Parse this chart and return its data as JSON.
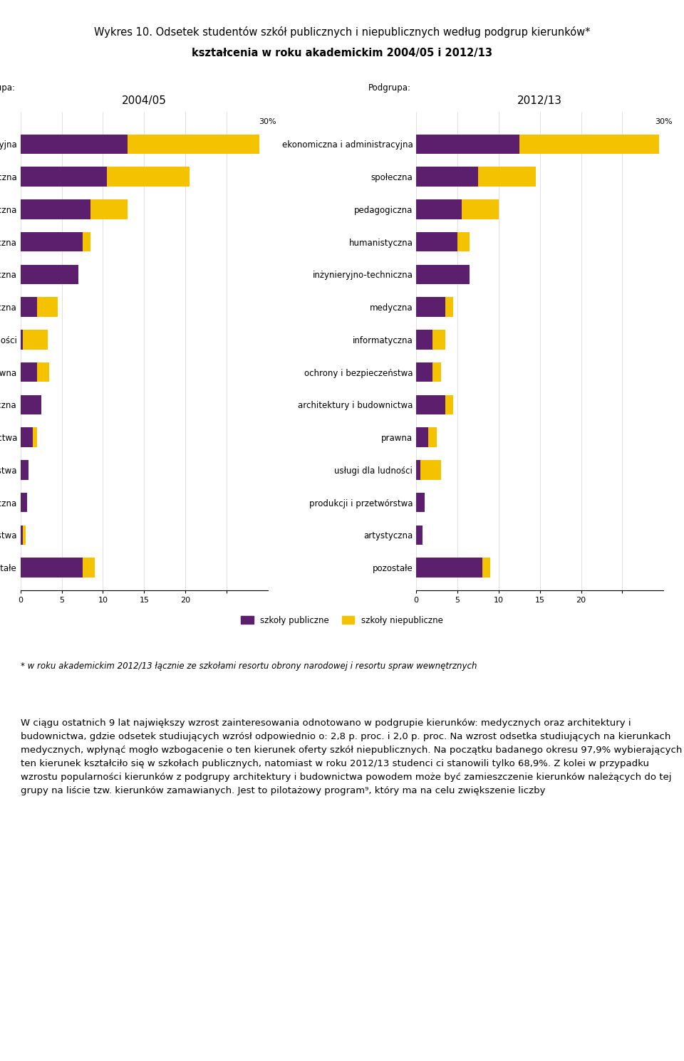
{
  "title_line1": "Wykres 10. Odsetek studentów szkół publicznych i niepublicznych według podgrup kierunków*",
  "title_line2": "kształcenia w roku akademickim 2004/05 i 2012/13",
  "footnote": "* w roku akademickim 2012/13 łącznie ze szkołami resortu obrony narodowej i resortu spraw wewnętrznych",
  "label_podgrupa": "Podgrupa:",
  "year_left": "2004/05",
  "year_right": "2012/13",
  "legend_public": "szkoły publiczne",
  "legend_private": "szkoły niepubliczne",
  "color_public": "#5b1f6e",
  "color_private": "#f5c200",
  "categories_left": [
    "ekonomiczna i administracyjna",
    "społeczna",
    "pedagogiczna",
    "humanistyczna",
    "inżynieryjno-techniczna",
    "informatyczna",
    "usługi dla ludności",
    "prawna",
    "medyczna",
    "architektury i budownictwa",
    "produkcji i przetwórstwa",
    "artystyczna",
    "ochrony i bezpieczeństwa",
    "pozostałe"
  ],
  "public_2004": [
    13.0,
    10.5,
    8.5,
    7.5,
    7.0,
    2.0,
    0.3,
    2.0,
    2.5,
    1.5,
    1.0,
    0.8,
    0.3,
    7.5
  ],
  "private_2004": [
    16.0,
    10.0,
    4.5,
    1.0,
    0.0,
    2.5,
    3.0,
    1.5,
    0.0,
    0.5,
    0.0,
    0.0,
    0.3,
    1.5
  ],
  "categories_right": [
    "ekonomiczna i administracyjna",
    "społeczna",
    "pedagogiczna",
    "humanistyczna",
    "inżynieryjno-techniczna",
    "medyczna",
    "informatyczna",
    "ochrony i bezpieczeństwa",
    "architektury i budownictwa",
    "prawna",
    "usługi dla ludności",
    "produkcji i przetwórstwa",
    "artystyczna",
    "pozostałe"
  ],
  "public_2012": [
    12.5,
    7.5,
    5.5,
    5.0,
    6.5,
    3.5,
    2.0,
    2.0,
    3.5,
    1.5,
    0.5,
    1.0,
    0.8,
    8.0
  ],
  "private_2012": [
    17.0,
    7.0,
    4.5,
    1.5,
    0.0,
    1.0,
    1.5,
    1.0,
    1.0,
    1.0,
    2.5,
    0.0,
    0.0,
    1.0
  ],
  "xlim": [
    0,
    30
  ],
  "xticks": [
    0,
    5,
    10,
    15,
    20,
    25
  ],
  "xlabel_suffix": "30%",
  "bar_height": 0.6,
  "background_color": "#ffffff",
  "text_color": "#000000",
  "fontsize_title": 11,
  "fontsize_labels": 8.5,
  "fontsize_axis": 8,
  "fontsize_legend": 8.5,
  "fontsize_footnote": 8.5
}
